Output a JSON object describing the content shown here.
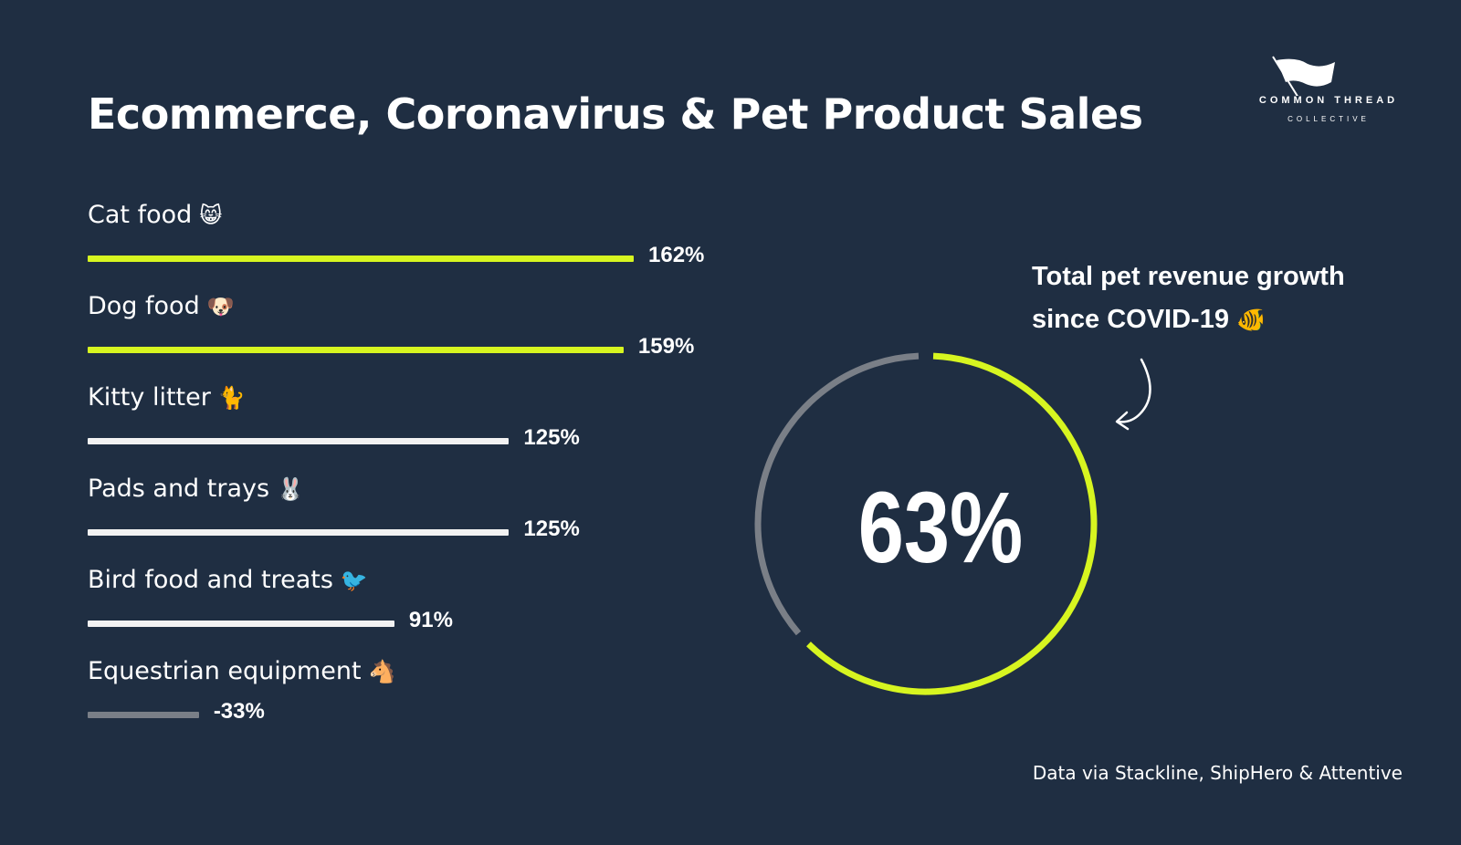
{
  "header": {
    "title": "Ecommerce, Coronavirus & Pet Product Sales"
  },
  "logo": {
    "line1": "COMMON THREAD",
    "line2": "COLLECTIVE"
  },
  "chart_data": [
    {
      "type": "bar",
      "orientation": "horizontal",
      "title": "",
      "categories": [
        "Cat food",
        "Dog food",
        "Kitty litter",
        "Pads and trays",
        "Bird food and treats",
        "Equestrian equipment"
      ],
      "emojis": [
        "😸",
        "🐶",
        "🐈",
        "🐰",
        "🐦",
        "🐴"
      ],
      "values": [
        162,
        159,
        125,
        125,
        91,
        -33
      ],
      "value_labels": [
        "162%",
        "159%",
        "125%",
        "125%",
        "91%",
        "-33%"
      ],
      "colors": [
        "#d7f520",
        "#d7f520",
        "#f2f2f2",
        "#f2f2f2",
        "#f2f2f2",
        "#7a7f87"
      ],
      "unit": "%"
    },
    {
      "type": "pie",
      "style": "donut",
      "value": 63,
      "value_label": "63%",
      "label": "Total pet revenue growth since COVID-19",
      "colors": {
        "filled": "#d7f520",
        "remainder": "#7a7f87"
      }
    }
  ],
  "callout": {
    "line1": "Total pet revenue growth",
    "line2": "since COVID-19",
    "emoji": "🐠"
  },
  "source": "Data via Stackline, ShipHero & Attentive",
  "colors": {
    "background": "#1f2e42",
    "accent": "#d7f520",
    "neutral": "#f2f2f2",
    "negative": "#7a7f87"
  }
}
